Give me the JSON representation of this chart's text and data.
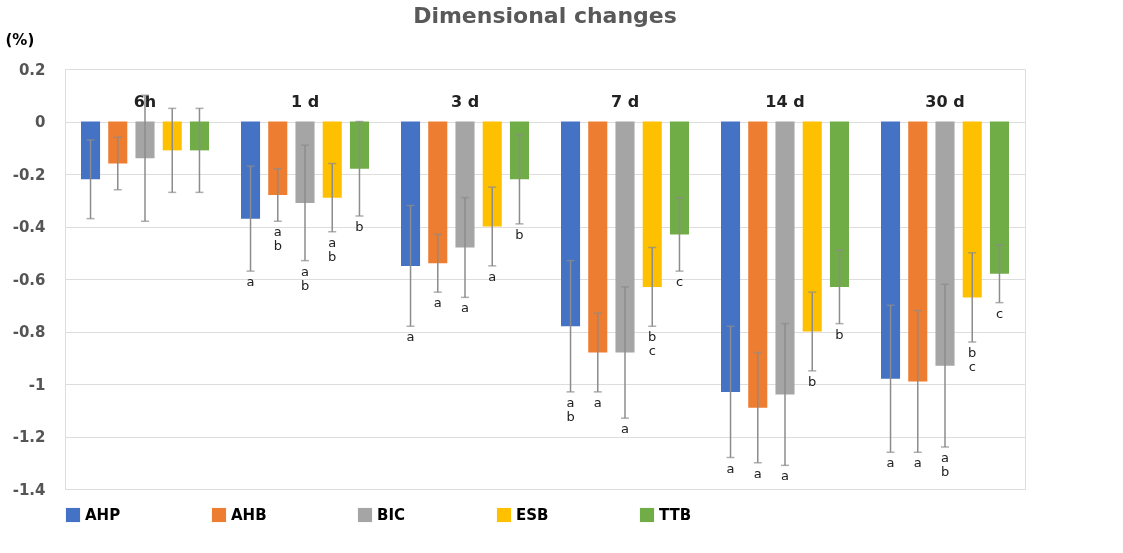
{
  "chart_data": {
    "type": "bar",
    "title": "Dimensional changes",
    "ylabel": "(%)",
    "categories": [
      "6h",
      "1 d",
      "3 d",
      "7 d",
      "14 d",
      "30 d"
    ],
    "series": [
      {
        "name": "AHP",
        "color": "#4472c4",
        "values": [
          -0.22,
          -0.37,
          -0.55,
          -0.78,
          -1.03,
          -0.98
        ],
        "errors": [
          0.15,
          0.2,
          0.23,
          0.25,
          0.25,
          0.28
        ]
      },
      {
        "name": "AHB",
        "color": "#ed7d31",
        "values": [
          -0.16,
          -0.28,
          -0.54,
          -0.88,
          -1.09,
          -0.99
        ],
        "errors": [
          0.1,
          0.1,
          0.11,
          0.15,
          0.21,
          0.27
        ]
      },
      {
        "name": "BIC",
        "color": "#a5a5a5",
        "values": [
          -0.14,
          -0.31,
          -0.48,
          -0.88,
          -1.04,
          -0.93
        ],
        "errors": [
          0.24,
          0.22,
          0.19,
          0.25,
          0.27,
          0.31
        ]
      },
      {
        "name": "ESB",
        "color": "#ffc000",
        "values": [
          -0.11,
          -0.29,
          -0.4,
          -0.63,
          -0.8,
          -0.67
        ],
        "errors": [
          0.16,
          0.13,
          0.15,
          0.15,
          0.15,
          0.17
        ]
      },
      {
        "name": "TTB",
        "color": "#70ad47",
        "values": [
          -0.11,
          -0.18,
          -0.22,
          -0.43,
          -0.63,
          -0.58
        ],
        "errors": [
          0.16,
          0.18,
          0.17,
          0.14,
          0.14,
          0.11
        ]
      }
    ],
    "annotations": [
      "a",
      "a\nb",
      "a\nb",
      "a\nb",
      "b",
      "a",
      "a",
      "a",
      "a",
      "b",
      "a\nb",
      "a",
      "a",
      "b\nc",
      "c",
      "a",
      "a",
      "a",
      "b",
      "b",
      "a",
      "a",
      "a\nb",
      "b\nc",
      "c"
    ],
    "ylim": [
      -1.4,
      0.2
    ],
    "yticks": [
      {
        "value": 0.2,
        "label": "0.2"
      },
      0,
      {
        "value": -0.2,
        "label": "-0.2"
      },
      {
        "value": -0.4,
        "label": "-0.4"
      },
      {
        "value": -0.6,
        "label": "-0.6"
      },
      {
        "value": -0.8,
        "label": "-0.8"
      },
      -1,
      {
        "value": -1.2,
        "label": "-1.2"
      },
      {
        "value": -1.4,
        "label": "-1.4"
      }
    ],
    "grid": "y",
    "legend": "bottom"
  }
}
